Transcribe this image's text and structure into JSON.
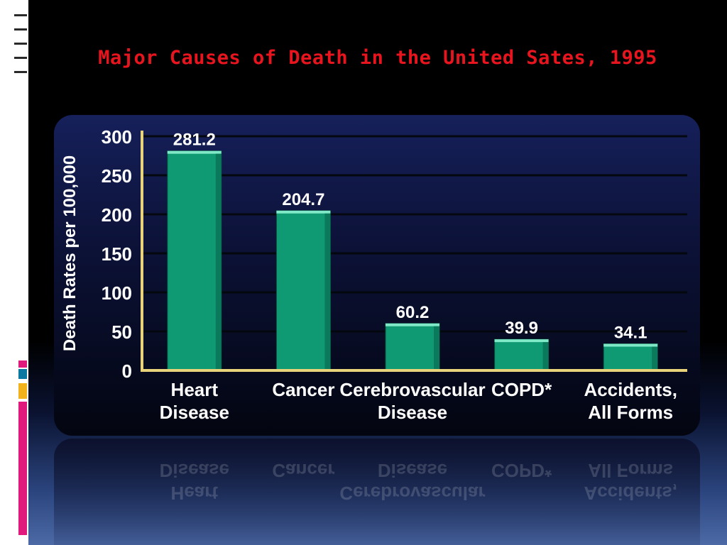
{
  "slide": {
    "title": "Major Causes of Death in the United Sates, 1995"
  },
  "colors": {
    "title": "#e8141e",
    "bar": "#0f9a74",
    "bar_top": "#7fe8c6",
    "axis": "#e8d27a",
    "grid": "#05070f",
    "text": "#ffffff"
  },
  "chart_data": {
    "type": "bar",
    "title": "",
    "xlabel": "",
    "ylabel": "Death Rates per 100,000",
    "ylim": [
      0,
      300
    ],
    "yticks": [
      0,
      50,
      100,
      150,
      200,
      250,
      300
    ],
    "grid": true,
    "categories": [
      [
        "Heart",
        "Disease"
      ],
      [
        "Cancer"
      ],
      [
        "Cerebrovascular",
        "Disease"
      ],
      [
        "COPD*"
      ],
      [
        "Accidents,",
        "All Forms"
      ]
    ],
    "values": [
      281.2,
      204.7,
      60.2,
      39.9,
      34.1
    ],
    "value_labels": [
      "281.2",
      "204.7",
      "60.2",
      "39.9",
      "34.1"
    ]
  }
}
